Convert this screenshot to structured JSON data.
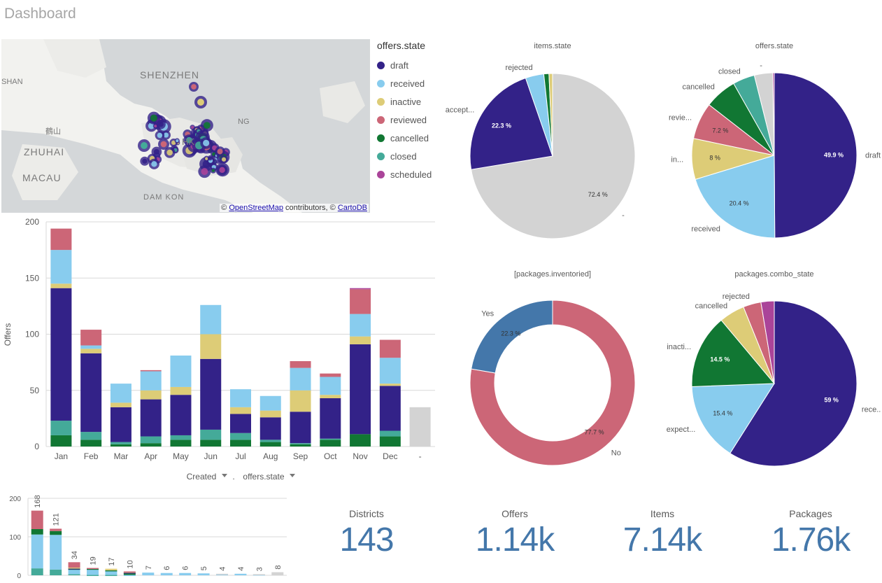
{
  "page_title": "Dashboard",
  "map": {
    "labels": [
      "SHENZHEN",
      "ZHUHAI",
      "MACAU",
      "DAM KON",
      "SHAN",
      "NG",
      "HK",
      "鶴山"
    ],
    "attribution": {
      "prefix": "© ",
      "osm_link": "OpenStreetMap",
      "middle": " contributors, © ",
      "carto_link": "CartoDB"
    }
  },
  "colors": {
    "draft": "#332288",
    "received": "#88ccee",
    "inactive": "#ddcc77",
    "reviewed": "#cc6677",
    "cancelled": "#117733",
    "closed": "#44aa99",
    "scheduled": "#aa4499",
    "null": "#d3d3d3",
    "yes": "#4477aa",
    "kpi": "#4477aa"
  },
  "legend": {
    "title": "offers.state",
    "items": [
      {
        "label": "draft",
        "color": "#332288"
      },
      {
        "label": "received",
        "color": "#88ccee"
      },
      {
        "label": "inactive",
        "color": "#ddcc77"
      },
      {
        "label": "reviewed",
        "color": "#cc6677"
      },
      {
        "label": "cancelled",
        "color": "#117733"
      },
      {
        "label": "closed",
        "color": "#44aa99"
      },
      {
        "label": "scheduled",
        "color": "#aa4499"
      }
    ]
  },
  "dims": {
    "created": "Created",
    "sep": ".",
    "state": "offers.state"
  },
  "chart_data": [
    {
      "type": "bar",
      "stacked": true,
      "ylabel": "Offers",
      "ylim": [
        0,
        200
      ],
      "yticks": [
        0,
        50,
        100,
        150,
        200
      ],
      "categories": [
        "Jan",
        "Feb",
        "Mar",
        "Apr",
        "May",
        "Jun",
        "Jul",
        "Aug",
        "Sep",
        "Oct",
        "Nov",
        "Dec",
        "-"
      ],
      "series": [
        {
          "key": "cancelled",
          "values": [
            10,
            6,
            2,
            3,
            6,
            6,
            6,
            4,
            2,
            6,
            11,
            9,
            0
          ]
        },
        {
          "key": "closed",
          "values": [
            13,
            7,
            2,
            6,
            4,
            9,
            6,
            2,
            1,
            1,
            0,
            5,
            0
          ]
        },
        {
          "key": "draft",
          "values": [
            118,
            70,
            31,
            33,
            36,
            63,
            17,
            20,
            28,
            36,
            80,
            40,
            0
          ]
        },
        {
          "key": "inactive",
          "values": [
            4,
            4,
            4,
            8,
            7,
            22,
            6,
            6,
            19,
            3,
            7,
            2,
            0
          ]
        },
        {
          "key": "received",
          "values": [
            30,
            3,
            17,
            17,
            28,
            26,
            16,
            13,
            20,
            16,
            20,
            23,
            0
          ]
        },
        {
          "key": "reviewed",
          "values": [
            19,
            14,
            0,
            1,
            0,
            0,
            0,
            0,
            6,
            3,
            22,
            16,
            0
          ]
        },
        {
          "key": "scheduled",
          "values": [
            0,
            0,
            0,
            0,
            0,
            0,
            0,
            0,
            0,
            0,
            1,
            0,
            0
          ]
        },
        {
          "key": "null",
          "values": [
            0,
            0,
            0,
            0,
            0,
            0,
            0,
            0,
            0,
            0,
            0,
            0,
            35
          ]
        }
      ]
    },
    {
      "type": "bar",
      "stacked": true,
      "ylim": [
        0,
        200
      ],
      "yticks": [
        0,
        100,
        200
      ],
      "totals": [
        168,
        121,
        34,
        19,
        17,
        10,
        7,
        6,
        6,
        5,
        4,
        4,
        3,
        8
      ],
      "series": [
        {
          "key": "closed",
          "values": [
            18,
            15,
            3,
            1,
            1,
            0,
            0,
            0,
            0,
            0,
            0,
            0,
            0,
            0
          ]
        },
        {
          "key": "received",
          "values": [
            88,
            90,
            12,
            15,
            10,
            1,
            7,
            6,
            6,
            5,
            3,
            4,
            2,
            0
          ]
        },
        {
          "key": "cancelled",
          "values": [
            14,
            10,
            2,
            1,
            2,
            5,
            0,
            0,
            0,
            0,
            0,
            0,
            0,
            0
          ]
        },
        {
          "key": "draft",
          "values": [
            0,
            0,
            1,
            0,
            0,
            1,
            0,
            0,
            0,
            0,
            0,
            0,
            0,
            0
          ]
        },
        {
          "key": "inactive",
          "values": [
            0,
            0,
            2,
            0,
            4,
            2,
            0,
            0,
            0,
            0,
            0,
            0,
            0,
            0
          ]
        },
        {
          "key": "reviewed",
          "values": [
            48,
            6,
            14,
            2,
            0,
            1,
            0,
            0,
            0,
            0,
            0,
            0,
            0,
            0
          ]
        },
        {
          "key": "null",
          "values": [
            0,
            0,
            0,
            0,
            0,
            0,
            0,
            0,
            0,
            0,
            1,
            0,
            1,
            8
          ]
        }
      ]
    },
    {
      "type": "pie",
      "title": "items.state",
      "slices": [
        {
          "label": "-",
          "value": 72.4,
          "color": "#d3d3d3"
        },
        {
          "label": "accept...",
          "value": 22.3,
          "color": "#332288"
        },
        {
          "label": "rejected",
          "value": 3.6,
          "color": "#88ccee"
        },
        {
          "label": "",
          "value": 1.0,
          "color": "#117733"
        },
        {
          "label": "",
          "value": 0.7,
          "color": "#ddcc77"
        }
      ]
    },
    {
      "type": "pie",
      "title": "offers.state",
      "slices": [
        {
          "label": "draft",
          "value": 49.9,
          "color": "#332288"
        },
        {
          "label": "received",
          "value": 20.4,
          "color": "#88ccee"
        },
        {
          "label": "in...",
          "value": 8.0,
          "color": "#ddcc77"
        },
        {
          "label": "revie...",
          "value": 7.2,
          "color": "#cc6677"
        },
        {
          "label": "cancelled",
          "value": 6.3,
          "color": "#117733"
        },
        {
          "label": "closed",
          "value": 4.3,
          "color": "#44aa99"
        },
        {
          "label": "-",
          "value": 3.6,
          "color": "#d3d3d3"
        },
        {
          "label": "",
          "value": 0.3,
          "color": "#aa4499"
        }
      ]
    },
    {
      "type": "donut",
      "title": "[packages.inventoried]",
      "slices": [
        {
          "label": "No",
          "value": 77.7,
          "color": "#cc6677"
        },
        {
          "label": "Yes",
          "value": 22.3,
          "color": "#4477aa"
        }
      ]
    },
    {
      "type": "pie",
      "title": "packages.combo_state",
      "slices": [
        {
          "label": "rece...",
          "value": 59.0,
          "color": "#332288"
        },
        {
          "label": "expect...",
          "value": 15.4,
          "color": "#88ccee"
        },
        {
          "label": "inacti...",
          "value": 14.5,
          "color": "#117733"
        },
        {
          "label": "cancelled",
          "value": 5.0,
          "color": "#ddcc77"
        },
        {
          "label": "rejected",
          "value": 3.5,
          "color": "#cc6677"
        },
        {
          "label": "",
          "value": 2.6,
          "color": "#aa4499"
        }
      ]
    }
  ],
  "kpis": [
    {
      "label": "Districts",
      "value": "143"
    },
    {
      "label": "Offers",
      "value": "1.14k"
    },
    {
      "label": "Items",
      "value": "7.14k"
    },
    {
      "label": "Packages",
      "value": "1.76k"
    }
  ]
}
